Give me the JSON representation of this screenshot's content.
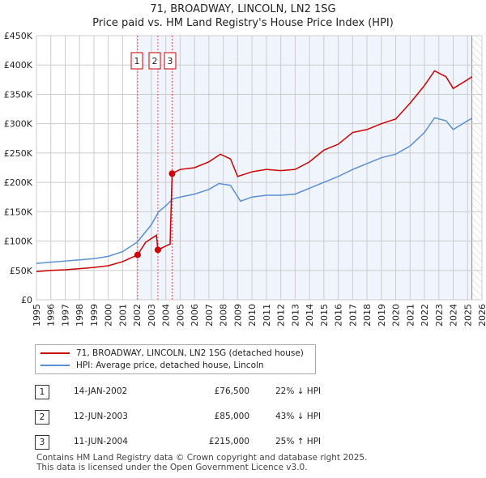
{
  "title": "71, BROADWAY, LINCOLN, LN2 1SG",
  "subtitle": "Price paid vs. HM Land Registry's House Price Index (HPI)",
  "chart_data": {
    "type": "line",
    "title": "71, BROADWAY, LINCOLN, LN2 1SG",
    "subtitle": "Price paid vs. HM Land Registry's House Price Index (HPI)",
    "xlim": [
      1995,
      2026
    ],
    "ylim": [
      0,
      450000
    ],
    "x_ticks": [
      "1995",
      "1996",
      "1997",
      "1998",
      "1999",
      "2000",
      "2001",
      "2002",
      "2003",
      "2004",
      "2005",
      "2006",
      "2007",
      "2008",
      "2009",
      "2010",
      "2011",
      "2012",
      "2013",
      "2014",
      "2015",
      "2016",
      "2017",
      "2018",
      "2019",
      "2020",
      "2021",
      "2022",
      "2023",
      "2024",
      "2025",
      "2026"
    ],
    "y_ticks": [
      {
        "v": 0,
        "l": "£0"
      },
      {
        "v": 50000,
        "l": "£50K"
      },
      {
        "v": 100000,
        "l": "£100K"
      },
      {
        "v": 150000,
        "l": "£150K"
      },
      {
        "v": 200000,
        "l": "£200K"
      },
      {
        "v": 250000,
        "l": "£250K"
      },
      {
        "v": 300000,
        "l": "£300K"
      },
      {
        "v": 350000,
        "l": "£350K"
      },
      {
        "v": 400000,
        "l": "£400K"
      },
      {
        "v": 450000,
        "l": "£450K"
      }
    ],
    "grid": true,
    "series": [
      {
        "name": "71, BROADWAY, LINCOLN, LN2 1SG (detached house)",
        "color": "#cc0000",
        "x": [
          1995,
          1996,
          1997,
          1998,
          1999,
          2000,
          2001,
          2002.04,
          2002.6,
          2003.35,
          2003.45,
          2004.3,
          2004.44,
          2005,
          2006,
          2007,
          2007.8,
          2008.5,
          2009,
          2010,
          2011,
          2012,
          2013,
          2014,
          2015,
          2016,
          2017,
          2018,
          2019,
          2020,
          2021,
          2022,
          2022.7,
          2023.5,
          2024,
          2025,
          2025.3
        ],
        "y": [
          48000,
          50000,
          51000,
          53000,
          55000,
          58000,
          65000,
          76500,
          98000,
          110000,
          85000,
          95000,
          215000,
          222000,
          225000,
          235000,
          248000,
          240000,
          210000,
          218000,
          222000,
          220000,
          222000,
          235000,
          255000,
          265000,
          285000,
          290000,
          300000,
          308000,
          335000,
          365000,
          390000,
          380000,
          360000,
          375000,
          380000
        ]
      },
      {
        "name": "HPI: Average price, detached house, Lincoln",
        "color": "#5b8fd4",
        "x": [
          1995,
          1996,
          1997,
          1998,
          1999,
          2000,
          2001,
          2002,
          2003,
          2003.5,
          2004,
          2004.5,
          2005,
          2006,
          2007,
          2007.7,
          2008.5,
          2009.2,
          2010,
          2011,
          2012,
          2013,
          2014,
          2015,
          2016,
          2017,
          2018,
          2019,
          2020,
          2021,
          2022,
          2022.7,
          2023.5,
          2024,
          2025,
          2025.3
        ],
        "y": [
          62000,
          64000,
          66000,
          68000,
          70000,
          74000,
          82000,
          98000,
          128000,
          150000,
          160000,
          172000,
          175000,
          180000,
          188000,
          198000,
          195000,
          168000,
          175000,
          178000,
          178000,
          180000,
          190000,
          200000,
          210000,
          222000,
          232000,
          242000,
          248000,
          262000,
          285000,
          310000,
          305000,
          290000,
          305000,
          309000
        ]
      }
    ],
    "sales": [
      {
        "label": "1",
        "x": 2002.04,
        "y": 76500
      },
      {
        "label": "2",
        "x": 2003.45,
        "y": 85000
      },
      {
        "label": "3",
        "x": 2004.44,
        "y": 215000
      }
    ],
    "legend_placement": "bottom"
  },
  "legend": [
    "71, BROADWAY, LINCOLN, LN2 1SG (detached house)",
    "HPI: Average price, detached house, Lincoln"
  ],
  "transactions": [
    {
      "num": "1",
      "date": "14-JAN-2002",
      "price": "£76,500",
      "hpi": "22% ↓ HPI"
    },
    {
      "num": "2",
      "date": "12-JUN-2003",
      "price": "£85,000",
      "hpi": "43% ↓ HPI"
    },
    {
      "num": "3",
      "date": "11-JUN-2004",
      "price": "£215,000",
      "hpi": "25% ↑ HPI"
    }
  ],
  "footer": [
    "Contains HM Land Registry data © Crown copyright and database right 2025.",
    "This data is licensed under the Open Government Licence v3.0."
  ]
}
